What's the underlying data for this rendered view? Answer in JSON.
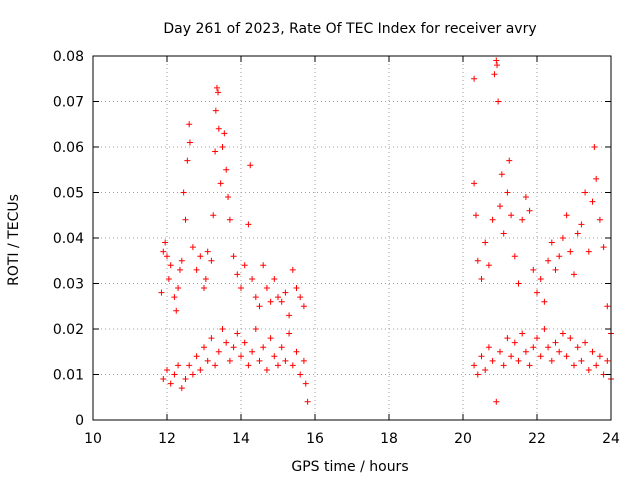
{
  "chart_data": {
    "type": "scatter",
    "title": "Day 261 of 2023, Rate Of TEC Index for receiver avry",
    "xlabel": "GPS time / hours",
    "ylabel": "ROTI / TECUs",
    "xlim": [
      10,
      24
    ],
    "ylim": [
      0,
      0.08
    ],
    "xticks": [
      10,
      12,
      14,
      16,
      18,
      20,
      22,
      24
    ],
    "yticks": [
      0,
      0.01,
      0.02,
      0.03,
      0.04,
      0.05,
      0.06,
      0.07,
      0.08
    ],
    "ytick_labels": [
      "0",
      "0.01",
      "0.02",
      "0.03",
      "0.04",
      "0.05",
      "0.06",
      "0.07",
      "0.08"
    ],
    "grid": true,
    "marker": "+",
    "color": "#ff0000",
    "series": [
      {
        "name": "ROTI",
        "points": [
          [
            11.85,
            0.028
          ],
          [
            11.9,
            0.037
          ],
          [
            11.95,
            0.039
          ],
          [
            12.0,
            0.036
          ],
          [
            12.05,
            0.031
          ],
          [
            12.1,
            0.034
          ],
          [
            12.2,
            0.027
          ],
          [
            12.25,
            0.024
          ],
          [
            12.3,
            0.029
          ],
          [
            12.35,
            0.033
          ],
          [
            12.4,
            0.035
          ],
          [
            12.45,
            0.05
          ],
          [
            12.5,
            0.044
          ],
          [
            12.55,
            0.057
          ],
          [
            12.6,
            0.065
          ],
          [
            12.62,
            0.061
          ],
          [
            12.7,
            0.038
          ],
          [
            12.8,
            0.033
          ],
          [
            12.9,
            0.036
          ],
          [
            13.0,
            0.029
          ],
          [
            13.05,
            0.031
          ],
          [
            13.1,
            0.037
          ],
          [
            13.2,
            0.035
          ],
          [
            13.25,
            0.045
          ],
          [
            13.3,
            0.059
          ],
          [
            13.32,
            0.068
          ],
          [
            13.35,
            0.073
          ],
          [
            13.38,
            0.072
          ],
          [
            13.4,
            0.064
          ],
          [
            13.45,
            0.052
          ],
          [
            13.5,
            0.06
          ],
          [
            13.55,
            0.063
          ],
          [
            13.6,
            0.055
          ],
          [
            13.65,
            0.049
          ],
          [
            13.7,
            0.044
          ],
          [
            13.8,
            0.036
          ],
          [
            13.9,
            0.032
          ],
          [
            14.0,
            0.029
          ],
          [
            14.1,
            0.034
          ],
          [
            14.2,
            0.043
          ],
          [
            14.25,
            0.056
          ],
          [
            14.3,
            0.031
          ],
          [
            14.4,
            0.027
          ],
          [
            14.5,
            0.025
          ],
          [
            14.6,
            0.034
          ],
          [
            14.7,
            0.029
          ],
          [
            14.8,
            0.026
          ],
          [
            14.9,
            0.031
          ],
          [
            15.0,
            0.027
          ],
          [
            15.1,
            0.026
          ],
          [
            15.2,
            0.028
          ],
          [
            15.3,
            0.023
          ],
          [
            15.4,
            0.033
          ],
          [
            15.5,
            0.029
          ],
          [
            15.6,
            0.027
          ],
          [
            15.7,
            0.025
          ],
          [
            15.75,
            0.008
          ],
          [
            15.8,
            0.004
          ],
          [
            11.9,
            0.009
          ],
          [
            12.0,
            0.011
          ],
          [
            12.1,
            0.008
          ],
          [
            12.2,
            0.01
          ],
          [
            12.3,
            0.012
          ],
          [
            12.4,
            0.007
          ],
          [
            12.5,
            0.009
          ],
          [
            12.6,
            0.012
          ],
          [
            12.7,
            0.01
          ],
          [
            12.8,
            0.014
          ],
          [
            12.9,
            0.011
          ],
          [
            13.0,
            0.016
          ],
          [
            13.1,
            0.013
          ],
          [
            13.2,
            0.018
          ],
          [
            13.3,
            0.012
          ],
          [
            13.4,
            0.015
          ],
          [
            13.5,
            0.02
          ],
          [
            13.6,
            0.017
          ],
          [
            13.7,
            0.013
          ],
          [
            13.8,
            0.016
          ],
          [
            13.9,
            0.019
          ],
          [
            14.0,
            0.014
          ],
          [
            14.1,
            0.017
          ],
          [
            14.2,
            0.012
          ],
          [
            14.3,
            0.015
          ],
          [
            14.4,
            0.02
          ],
          [
            14.5,
            0.013
          ],
          [
            14.6,
            0.016
          ],
          [
            14.7,
            0.011
          ],
          [
            14.8,
            0.018
          ],
          [
            14.9,
            0.014
          ],
          [
            15.0,
            0.012
          ],
          [
            15.1,
            0.016
          ],
          [
            15.2,
            0.013
          ],
          [
            15.3,
            0.019
          ],
          [
            15.4,
            0.012
          ],
          [
            15.5,
            0.015
          ],
          [
            15.6,
            0.01
          ],
          [
            15.7,
            0.013
          ],
          [
            20.3,
            0.075
          ],
          [
            20.3,
            0.052
          ],
          [
            20.35,
            0.045
          ],
          [
            20.4,
            0.035
          ],
          [
            20.5,
            0.031
          ],
          [
            20.6,
            0.039
          ],
          [
            20.7,
            0.034
          ],
          [
            20.8,
            0.044
          ],
          [
            20.85,
            0.076
          ],
          [
            20.9,
            0.079
          ],
          [
            20.92,
            0.078
          ],
          [
            20.95,
            0.07
          ],
          [
            21.0,
            0.047
          ],
          [
            21.05,
            0.054
          ],
          [
            21.1,
            0.041
          ],
          [
            21.2,
            0.05
          ],
          [
            21.25,
            0.057
          ],
          [
            21.3,
            0.045
          ],
          [
            21.4,
            0.036
          ],
          [
            21.5,
            0.03
          ],
          [
            21.6,
            0.044
          ],
          [
            21.7,
            0.049
          ],
          [
            21.8,
            0.046
          ],
          [
            21.9,
            0.033
          ],
          [
            22.0,
            0.028
          ],
          [
            22.1,
            0.031
          ],
          [
            22.2,
            0.026
          ],
          [
            22.3,
            0.035
          ],
          [
            22.4,
            0.039
          ],
          [
            22.5,
            0.033
          ],
          [
            22.6,
            0.036
          ],
          [
            22.7,
            0.04
          ],
          [
            22.8,
            0.045
          ],
          [
            22.9,
            0.037
          ],
          [
            23.0,
            0.032
          ],
          [
            23.1,
            0.041
          ],
          [
            23.2,
            0.043
          ],
          [
            23.3,
            0.05
          ],
          [
            23.4,
            0.037
          ],
          [
            23.5,
            0.048
          ],
          [
            23.55,
            0.06
          ],
          [
            23.6,
            0.053
          ],
          [
            23.7,
            0.044
          ],
          [
            23.8,
            0.038
          ],
          [
            23.9,
            0.025
          ],
          [
            24.0,
            0.019
          ],
          [
            20.3,
            0.012
          ],
          [
            20.4,
            0.01
          ],
          [
            20.5,
            0.014
          ],
          [
            20.6,
            0.011
          ],
          [
            20.7,
            0.016
          ],
          [
            20.8,
            0.013
          ],
          [
            20.9,
            0.004
          ],
          [
            21.0,
            0.015
          ],
          [
            21.1,
            0.012
          ],
          [
            21.2,
            0.018
          ],
          [
            21.3,
            0.014
          ],
          [
            21.4,
            0.017
          ],
          [
            21.5,
            0.013
          ],
          [
            21.6,
            0.019
          ],
          [
            21.7,
            0.015
          ],
          [
            21.8,
            0.012
          ],
          [
            21.9,
            0.016
          ],
          [
            22.0,
            0.018
          ],
          [
            22.1,
            0.014
          ],
          [
            22.2,
            0.02
          ],
          [
            22.3,
            0.016
          ],
          [
            22.4,
            0.013
          ],
          [
            22.5,
            0.017
          ],
          [
            22.6,
            0.015
          ],
          [
            22.7,
            0.019
          ],
          [
            22.8,
            0.014
          ],
          [
            22.9,
            0.018
          ],
          [
            23.0,
            0.012
          ],
          [
            23.1,
            0.016
          ],
          [
            23.2,
            0.013
          ],
          [
            23.3,
            0.017
          ],
          [
            23.4,
            0.011
          ],
          [
            23.5,
            0.015
          ],
          [
            23.6,
            0.012
          ],
          [
            23.7,
            0.014
          ],
          [
            23.8,
            0.01
          ],
          [
            23.9,
            0.013
          ],
          [
            24.0,
            0.009
          ]
        ]
      }
    ]
  }
}
